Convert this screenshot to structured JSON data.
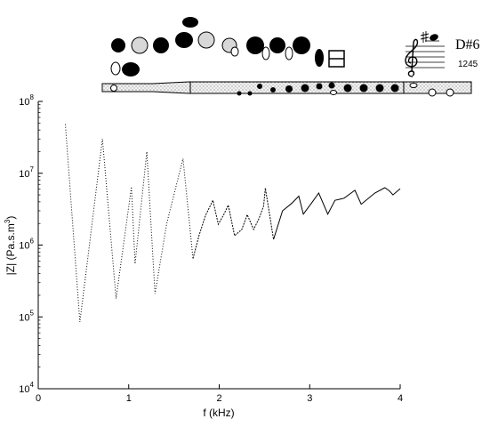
{
  "note": {
    "name": "D#6",
    "fingering_code": "1245"
  },
  "chart_data": {
    "type": "line",
    "title": "",
    "xlabel": "f (kHz)",
    "ylabel_main": "|Z| (Pa.s.m",
    "ylabel_sup": "3",
    "ylabel_close": ")",
    "y_scale": "log",
    "xlim": [
      0,
      4
    ],
    "ylim": [
      10000,
      100000000
    ],
    "grid": false,
    "x_ticks": [
      {
        "value": 0,
        "label": "0"
      },
      {
        "value": 1,
        "label": "1"
      },
      {
        "value": 2,
        "label": "2"
      },
      {
        "value": 3,
        "label": "3"
      },
      {
        "value": 4,
        "label": "4"
      }
    ],
    "y_ticks": [
      {
        "value": 10000,
        "base": "10",
        "exp": "4"
      },
      {
        "value": 100000,
        "base": "10",
        "exp": "5"
      },
      {
        "value": 1000000,
        "base": "10",
        "exp": "6"
      },
      {
        "value": 10000000,
        "base": "10",
        "exp": "7"
      },
      {
        "value": 100000000,
        "base": "10",
        "exp": "8"
      }
    ],
    "series": [
      {
        "line_style": "dotted",
        "x": [
          0.3,
          0.46,
          0.55,
          0.71,
          0.86,
          0.95,
          1.03,
          1.07,
          1.15,
          1.2,
          1.29,
          1.42,
          1.6,
          1.71
        ],
        "y": [
          48000000,
          85000,
          700000,
          30000000,
          180000,
          1200000,
          6500000,
          550000,
          5000000,
          20000000,
          210000,
          2000000,
          16000000,
          650000
        ]
      },
      {
        "line_style": "dashed",
        "x": [
          1.71,
          1.78,
          1.85,
          1.93,
          1.99,
          2.05,
          2.1,
          2.17,
          2.25,
          2.31,
          2.38,
          2.44,
          2.49,
          2.51,
          2.6
        ],
        "y": [
          650000,
          1400000,
          2600000,
          4200000,
          1950000,
          2650000,
          3600000,
          1350000,
          1650000,
          2650000,
          1650000,
          2350000,
          3500000,
          6200000,
          1200000
        ]
      },
      {
        "line_style": "solid",
        "x": [
          2.6,
          2.7,
          2.8,
          2.88,
          2.93,
          3.03,
          3.1,
          3.2,
          3.28,
          3.38,
          3.5,
          3.57,
          3.72,
          3.83,
          3.88,
          3.92,
          4.0
        ],
        "y": [
          1200000,
          3000000,
          3800000,
          4800000,
          2700000,
          4000000,
          5300000,
          2700000,
          4200000,
          4500000,
          5800000,
          3700000,
          5300000,
          6300000,
          5700000,
          5000000,
          6100000
        ]
      }
    ]
  }
}
